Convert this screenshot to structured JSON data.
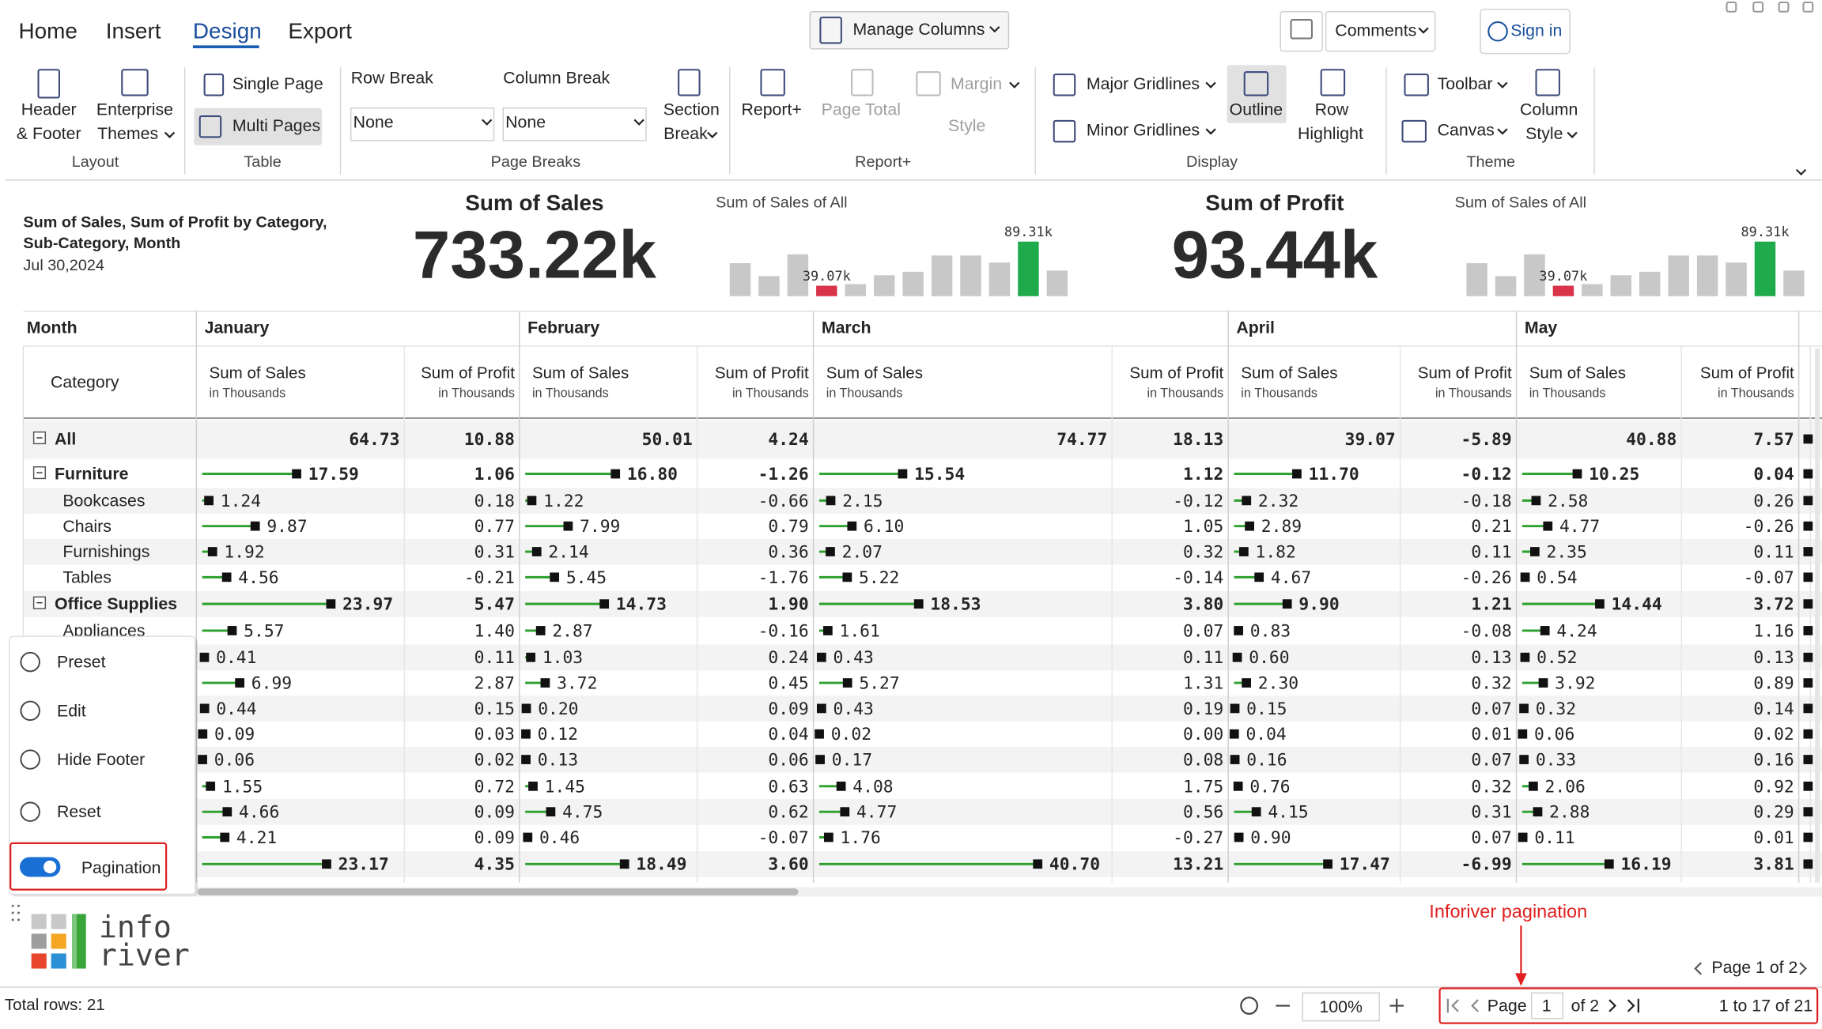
{
  "ribbon": {
    "tabs": [
      "Home",
      "Insert",
      "Design",
      "Export"
    ],
    "active_tab": 2,
    "manage_columns": "Manage Columns",
    "comments": "Comments",
    "sign_in": "Sign in",
    "layout": {
      "label": "Layout",
      "header_footer": [
        "Header",
        "& Footer"
      ],
      "enterprise_themes": [
        "Enterprise",
        "Themes"
      ]
    },
    "table": {
      "label": "Table",
      "single_page": "Single Page",
      "multi_pages": "Multi Pages"
    },
    "page_breaks": {
      "label": "Page Breaks",
      "row_break": "Row Break",
      "row_break_value": "None",
      "column_break": "Column Break",
      "column_break_value": "None",
      "section_break": [
        "Section",
        "Break"
      ]
    },
    "report_plus": {
      "label": "Report+",
      "report_plus": "Report+",
      "page_total": "Page Total",
      "margin": "Margin",
      "style": "Style"
    },
    "display": {
      "label": "Display",
      "major_gridlines": "Major Gridlines",
      "minor_gridlines": "Minor Gridlines",
      "outline": "Outline",
      "row_highlight": [
        "Row",
        "Highlight"
      ]
    },
    "theme": {
      "label": "Theme",
      "toolbar": "Toolbar",
      "canvas": "Canvas",
      "column_style": [
        "Column",
        "Style"
      ]
    }
  },
  "report": {
    "title": [
      "Sum of Sales, Sum of Profit by Category,",
      "Sub-Category, Month"
    ],
    "date": "Jul 30,2024"
  },
  "kpi_cards": [
    {
      "label": "Sum of Sales",
      "value": "733.22k",
      "chart_data": {
        "type": "bar",
        "title": "Sum of Sales of All",
        "values": [
          64.73,
          50.01,
          74.77,
          39.07,
          40.88,
          51.0,
          55.0,
          73.5,
          73.5,
          65.5,
          89.31,
          56.3
        ],
        "value_labels": [
          null,
          null,
          null,
          "39.07k",
          null,
          null,
          null,
          null,
          null,
          null,
          "89.31k",
          null
        ],
        "color": "#c8c8c8",
        "min_color": "#d9334a",
        "max_color": "#1faa4b"
      }
    },
    {
      "label": "Sum of Profit",
      "value": "93.44k",
      "chart_data": {
        "type": "bar",
        "title": "Sum of Sales of All",
        "values": [
          64.73,
          50.01,
          74.77,
          39.07,
          40.88,
          51.0,
          55.0,
          73.5,
          73.5,
          65.5,
          89.31,
          56.3
        ],
        "value_labels": [
          null,
          null,
          null,
          "39.07k",
          null,
          null,
          null,
          null,
          null,
          null,
          "89.31k",
          null
        ],
        "color": "#c8c8c8",
        "min_color": "#d9334a",
        "max_color": "#1faa4b"
      }
    }
  ],
  "table": {
    "row_header": "Month",
    "column_header": "Category",
    "months": [
      "January",
      "February",
      "March",
      "April",
      "May"
    ],
    "measures": [
      {
        "name": "Sum of Sales",
        "unit": "in Thousands"
      },
      {
        "name": "Sum of Profit",
        "unit": "in Thousands"
      }
    ],
    "bar_color": "#2ca02c",
    "rows": [
      {
        "label": "All",
        "level": 0,
        "cells": [
          "64.73",
          "10.88",
          "50.01",
          "4.24",
          "74.77",
          "18.13",
          "39.07",
          "-5.89",
          "40.88",
          "7.57"
        ]
      },
      {
        "label": "Furniture",
        "level": 1,
        "cells": [
          "17.59",
          "1.06",
          "16.80",
          "-1.26",
          "15.54",
          "1.12",
          "11.70",
          "-0.12",
          "10.25",
          "0.04"
        ]
      },
      {
        "label": "Bookcases",
        "level": 2,
        "cells": [
          "1.24",
          "0.18",
          "1.22",
          "-0.66",
          "2.15",
          "-0.12",
          "2.32",
          "-0.18",
          "2.58",
          "0.26"
        ]
      },
      {
        "label": "Chairs",
        "level": 2,
        "cells": [
          "9.87",
          "0.77",
          "7.99",
          "0.79",
          "6.10",
          "1.05",
          "2.89",
          "0.21",
          "4.77",
          "-0.26"
        ]
      },
      {
        "label": "Furnishings",
        "level": 2,
        "cells": [
          "1.92",
          "0.31",
          "2.14",
          "0.36",
          "2.07",
          "0.32",
          "1.82",
          "0.11",
          "2.35",
          "0.11"
        ]
      },
      {
        "label": "Tables",
        "level": 2,
        "cells": [
          "4.56",
          "-0.21",
          "5.45",
          "-1.76",
          "5.22",
          "-0.14",
          "4.67",
          "-0.26",
          "0.54",
          "-0.07"
        ]
      },
      {
        "label": "Office Supplies",
        "level": 1,
        "cells": [
          "23.97",
          "5.47",
          "14.73",
          "1.90",
          "18.53",
          "3.80",
          "9.90",
          "1.21",
          "14.44",
          "3.72"
        ]
      },
      {
        "label": "Appliances",
        "level": 2,
        "cells": [
          "5.57",
          "1.40",
          "2.87",
          "-0.16",
          "1.61",
          "0.07",
          "0.83",
          "-0.08",
          "4.24",
          "1.16"
        ]
      },
      {
        "label": null,
        "level": 2,
        "cells": [
          "0.41",
          "0.11",
          "1.03",
          "0.24",
          "0.43",
          "0.11",
          "0.60",
          "0.13",
          "0.52",
          "0.13"
        ]
      },
      {
        "label": null,
        "level": 2,
        "cells": [
          "6.99",
          "2.87",
          "3.72",
          "0.45",
          "5.27",
          "1.31",
          "2.30",
          "0.32",
          "3.92",
          "0.89"
        ]
      },
      {
        "label": null,
        "level": 2,
        "cells": [
          "0.44",
          "0.15",
          "0.20",
          "0.09",
          "0.43",
          "0.19",
          "0.15",
          "0.07",
          "0.32",
          "0.14"
        ]
      },
      {
        "label": null,
        "level": 2,
        "cells": [
          "0.09",
          "0.03",
          "0.12",
          "0.04",
          "0.02",
          "0.00",
          "0.04",
          "0.01",
          "0.06",
          "0.02"
        ]
      },
      {
        "label": null,
        "level": 2,
        "cells": [
          "0.06",
          "0.02",
          "0.13",
          "0.06",
          "0.17",
          "0.08",
          "0.16",
          "0.07",
          "0.33",
          "0.16"
        ]
      },
      {
        "label": null,
        "level": 2,
        "cells": [
          "1.55",
          "0.72",
          "1.45",
          "0.63",
          "4.08",
          "1.75",
          "0.76",
          "0.32",
          "2.06",
          "0.92"
        ]
      },
      {
        "label": null,
        "level": 2,
        "cells": [
          "4.66",
          "0.09",
          "4.75",
          "0.62",
          "4.77",
          "0.56",
          "4.15",
          "0.31",
          "2.88",
          "0.29"
        ]
      },
      {
        "label": null,
        "level": 2,
        "cells": [
          "4.21",
          "0.09",
          "0.46",
          "-0.07",
          "1.76",
          "-0.27",
          "0.90",
          "0.07",
          "0.11",
          "0.01"
        ]
      },
      {
        "label": null,
        "level": 1,
        "cells": [
          "23.17",
          "4.35",
          "18.49",
          "3.60",
          "40.70",
          "13.21",
          "17.47",
          "-6.99",
          "16.19",
          "3.81"
        ]
      }
    ]
  },
  "context_menu": [
    "Preset",
    "Edit",
    "Hide Footer",
    "Reset",
    "Pagination"
  ],
  "logo": [
    "info",
    "river"
  ],
  "annotation": "Inforiver pagination",
  "footer": {
    "page_summary": "Page 1 of 2",
    "total_rows": "Total rows: 21",
    "zoom": "100%",
    "page_label": "Page",
    "page_input": "1",
    "page_of": "of 2",
    "range": "1 to 17 of 21"
  }
}
